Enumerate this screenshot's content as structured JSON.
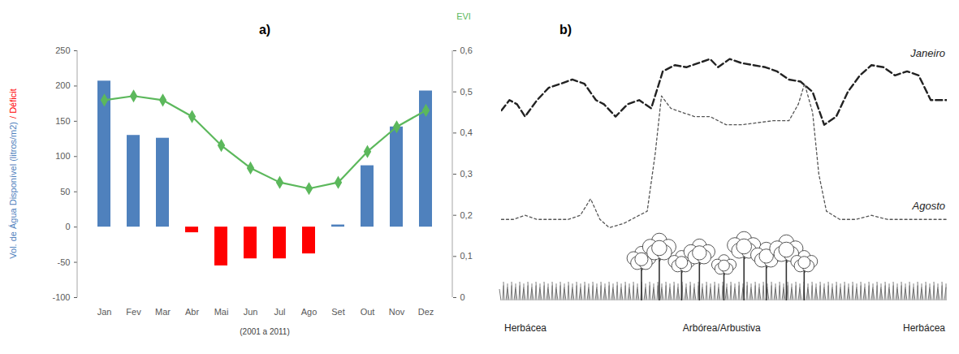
{
  "chart_data": [
    {
      "type": "bar",
      "title": "a)",
      "categories": [
        "Jan",
        "Fev",
        "Mar",
        "Abr",
        "Mai",
        "Jun",
        "Jul",
        "Ago",
        "Set",
        "Out",
        "Nov",
        "Dez"
      ],
      "x_label": "(2001 a 2011)",
      "y_label": [
        {
          "text": "Vol. de Água Disponível (litros/m2)",
          "color": "#4f81bd"
        },
        {
          "text": "/ Déficit",
          "color": "#ff0000"
        }
      ],
      "ylim": [
        -100,
        250
      ],
      "yticks": [
        -100,
        -50,
        0,
        50,
        100,
        150,
        200,
        250
      ],
      "y2lim": [
        0,
        0.6
      ],
      "y2ticks": [
        0,
        {
          "value": 0.1,
          "label": "0,1"
        },
        {
          "value": 0.2,
          "label": "0,2"
        },
        {
          "value": 0.3,
          "label": "0,3"
        },
        {
          "value": 0.4,
          "label": "0,4"
        },
        {
          "value": 0.5,
          "label": "0,5"
        },
        {
          "value": 0.6,
          "label": "0,6"
        }
      ],
      "series": [
        {
          "type": "bar",
          "values": [
            207,
            130,
            126,
            -8,
            -55,
            -45,
            -45,
            -38,
            3,
            87,
            142,
            193
          ],
          "colors": [
            "#4f81bd",
            "#4f81bd",
            "#4f81bd",
            "#ff0000",
            "#ff0000",
            "#ff0000",
            "#ff0000",
            "#ff0000",
            "#4f81bd",
            "#4f81bd",
            "#4f81bd",
            "#4f81bd"
          ]
        },
        {
          "type": "line",
          "name": "EVI",
          "axis": "y2",
          "color": "#5cb85c",
          "marker": "diamond",
          "values": [
            0.48,
            0.49,
            0.48,
            0.44,
            0.37,
            0.315,
            0.28,
            0.265,
            0.28,
            0.355,
            0.415,
            0.455
          ]
        }
      ]
    },
    {
      "type": "line",
      "title": "b)",
      "xlim": [
        0,
        100
      ],
      "ylim": [
        0,
        0.6
      ],
      "tick_labels": false,
      "x_labels": [
        "Herbácea",
        "Arbórea/Arbustiva",
        "Herbácea"
      ],
      "series": [
        {
          "name": "Janeiro",
          "color": "#222222",
          "line_style": "dashed",
          "x": [
            0,
            1.8,
            3.5,
            5.3,
            8,
            10.6,
            13.3,
            15.9,
            18.6,
            21.2,
            23,
            25.6,
            28.3,
            30.9,
            33.6,
            36.2,
            38.9,
            41.5,
            44.2,
            46.8,
            48.6,
            51.2,
            53.9,
            56.5,
            59.2,
            61.8,
            64.5,
            67.1,
            69.8,
            72.4,
            75.1,
            77.7,
            80.4,
            83,
            85.7,
            88.3,
            91,
            93.6,
            96.3,
            100
          ],
          "values": [
            0.455,
            0.48,
            0.47,
            0.44,
            0.48,
            0.51,
            0.52,
            0.53,
            0.52,
            0.48,
            0.47,
            0.44,
            0.47,
            0.48,
            0.46,
            0.55,
            0.565,
            0.56,
            0.57,
            0.58,
            0.56,
            0.58,
            0.57,
            0.565,
            0.56,
            0.55,
            0.53,
            0.525,
            0.5,
            0.42,
            0.44,
            0.5,
            0.54,
            0.565,
            0.56,
            0.54,
            0.55,
            0.54,
            0.48,
            0.48
          ]
        },
        {
          "name": "Agosto",
          "color": "#555555",
          "line_style": "dotted",
          "x": [
            0,
            2.7,
            5.3,
            8,
            11.5,
            15,
            17.7,
            20,
            22.1,
            24.2,
            27.4,
            30.9,
            32.7,
            34.5,
            35.9,
            38,
            40.6,
            43.3,
            46.8,
            50.4,
            53.9,
            57.4,
            61,
            64.5,
            66.6,
            68,
            69.8,
            71.2,
            72.9,
            75.9,
            79.5,
            83,
            86.6,
            90.1,
            93.6,
            100
          ],
          "values": [
            0.19,
            0.19,
            0.2,
            0.19,
            0.19,
            0.19,
            0.2,
            0.24,
            0.19,
            0.17,
            0.18,
            0.2,
            0.21,
            0.35,
            0.49,
            0.46,
            0.45,
            0.44,
            0.44,
            0.42,
            0.42,
            0.425,
            0.43,
            0.43,
            0.47,
            0.52,
            0.45,
            0.3,
            0.21,
            0.19,
            0.19,
            0.2,
            0.19,
            0.19,
            0.19,
            0.19
          ]
        }
      ]
    }
  ]
}
